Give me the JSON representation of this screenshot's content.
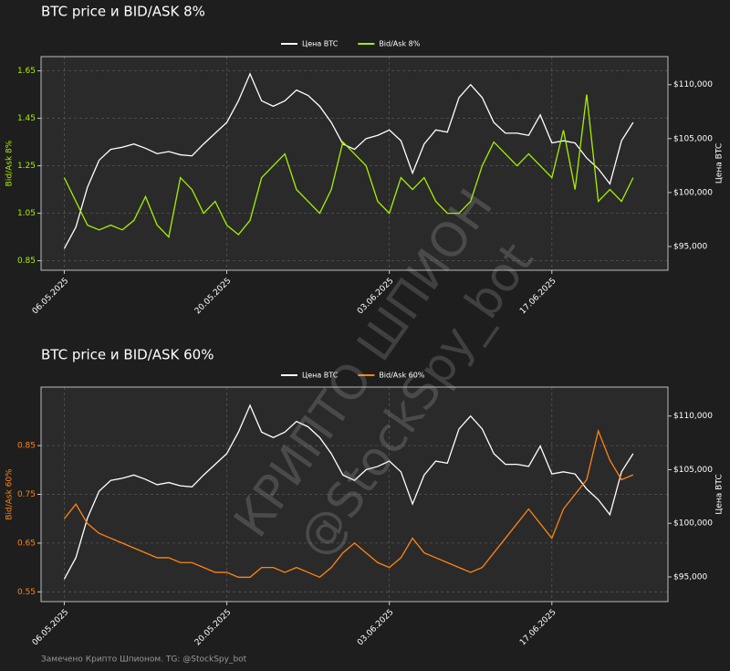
{
  "chart_data": [
    {
      "type": "line",
      "title": "BTC price и BID/ASK 8%",
      "ylabel": "Bid/Ask 8%",
      "y2label": "Цена BTC",
      "x": [
        "06.05.2025",
        "07.05.2025",
        "08.05.2025",
        "09.05.2025",
        "10.05.2025",
        "11.05.2025",
        "12.05.2025",
        "13.05.2025",
        "14.05.2025",
        "15.05.2025",
        "16.05.2025",
        "17.05.2025",
        "18.05.2025",
        "19.05.2025",
        "20.05.2025",
        "21.05.2025",
        "22.05.2025",
        "23.05.2025",
        "24.05.2025",
        "25.05.2025",
        "26.05.2025",
        "27.05.2025",
        "28.05.2025",
        "29.05.2025",
        "30.05.2025",
        "31.05.2025",
        "01.06.2025",
        "02.06.2025",
        "03.06.2025",
        "04.06.2025",
        "05.06.2025",
        "06.06.2025",
        "07.06.2025",
        "08.06.2025",
        "09.06.2025",
        "10.06.2025",
        "11.06.2025",
        "12.06.2025",
        "13.06.2025",
        "14.06.2025",
        "15.06.2025",
        "16.06.2025",
        "17.06.2025",
        "18.06.2025",
        "19.06.2025",
        "20.06.2025",
        "21.06.2025",
        "22.06.2025",
        "23.06.2025",
        "24.06.2025"
      ],
      "series": [
        {
          "name": "Цена BTC",
          "color": "#ffffff",
          "axis": "y2",
          "values": [
            94800,
            96800,
            100500,
            103000,
            104000,
            104200,
            104500,
            104100,
            103600,
            103800,
            103500,
            103400,
            104500,
            105500,
            106500,
            108500,
            111000,
            108500,
            108000,
            108500,
            109500,
            109000,
            108000,
            106500,
            104500,
            104000,
            105000,
            105300,
            105800,
            104800,
            101800,
            104500,
            105800,
            105600,
            108800,
            110000,
            108800,
            106500,
            105500,
            105500,
            105300,
            107200,
            104600,
            104800,
            104600,
            103200,
            102200,
            100800,
            104800,
            106500
          ]
        },
        {
          "name": "Bid/Ask 8%",
          "color": "#a6f000",
          "values": [
            1.2,
            1.1,
            1.0,
            0.98,
            1.0,
            0.98,
            1.02,
            1.12,
            1.0,
            0.95,
            1.2,
            1.15,
            1.05,
            1.1,
            1.0,
            0.96,
            1.02,
            1.2,
            1.25,
            1.3,
            1.15,
            1.1,
            1.05,
            1.15,
            1.35,
            1.3,
            1.25,
            1.1,
            1.05,
            1.2,
            1.15,
            1.2,
            1.1,
            1.05,
            1.05,
            1.1,
            1.25,
            1.35,
            1.3,
            1.25,
            1.3,
            1.25,
            1.2,
            1.4,
            1.15,
            1.55,
            1.1,
            1.15,
            1.1,
            1.2
          ]
        }
      ],
      "xlim": [
        "04.05.2025",
        "27.06.2025"
      ],
      "xticks": [
        "06.05.2025",
        "20.05.2025",
        "03.06.2025",
        "17.06.2025"
      ],
      "ylim": [
        0.81,
        1.71
      ],
      "yticks": [
        0.85,
        1.05,
        1.25,
        1.45,
        1.65
      ],
      "y2lim": [
        92800,
        112600
      ],
      "y2ticks": [
        {
          "value": 95000,
          "label": "$95,000"
        },
        {
          "value": 100000,
          "label": "$100,000"
        },
        {
          "value": 105000,
          "label": "$105,000"
        },
        {
          "value": 110000,
          "label": "$110,000"
        }
      ],
      "grid": true,
      "legend": "top"
    },
    {
      "type": "line",
      "title": "BTC price и BID/ASK 60%",
      "ylabel": "Bid/Ask 60%",
      "y2label": "Цена BTC",
      "x": [
        "06.05.2025",
        "07.05.2025",
        "08.05.2025",
        "09.05.2025",
        "10.05.2025",
        "11.05.2025",
        "12.05.2025",
        "13.05.2025",
        "14.05.2025",
        "15.05.2025",
        "16.05.2025",
        "17.05.2025",
        "18.05.2025",
        "19.05.2025",
        "20.05.2025",
        "21.05.2025",
        "22.05.2025",
        "23.05.2025",
        "24.05.2025",
        "25.05.2025",
        "26.05.2025",
        "27.05.2025",
        "28.05.2025",
        "29.05.2025",
        "30.05.2025",
        "31.05.2025",
        "01.06.2025",
        "02.06.2025",
        "03.06.2025",
        "04.06.2025",
        "05.06.2025",
        "06.06.2025",
        "07.06.2025",
        "08.06.2025",
        "09.06.2025",
        "10.06.2025",
        "11.06.2025",
        "12.06.2025",
        "13.06.2025",
        "14.06.2025",
        "15.06.2025",
        "16.06.2025",
        "17.06.2025",
        "18.06.2025",
        "19.06.2025",
        "20.06.2025",
        "21.06.2025",
        "22.06.2025",
        "23.06.2025",
        "24.06.2025"
      ],
      "series": [
        {
          "name": "Цена BTC",
          "color": "#ffffff",
          "axis": "y2",
          "values": [
            94800,
            96800,
            100500,
            103000,
            104000,
            104200,
            104500,
            104100,
            103600,
            103800,
            103500,
            103400,
            104500,
            105500,
            106500,
            108500,
            111000,
            108500,
            108000,
            108500,
            109500,
            109000,
            108000,
            106500,
            104500,
            104000,
            105000,
            105300,
            105800,
            104800,
            101800,
            104500,
            105800,
            105600,
            108800,
            110000,
            108800,
            106500,
            105500,
            105500,
            105300,
            107200,
            104600,
            104800,
            104600,
            103200,
            102200,
            100800,
            104800,
            106500
          ]
        },
        {
          "name": "Bid/Ask 60%",
          "color": "#ff8412",
          "values": [
            0.7,
            0.73,
            0.69,
            0.67,
            0.66,
            0.65,
            0.64,
            0.63,
            0.62,
            0.62,
            0.61,
            0.61,
            0.6,
            0.59,
            0.59,
            0.58,
            0.58,
            0.6,
            0.6,
            0.59,
            0.6,
            0.59,
            0.58,
            0.6,
            0.63,
            0.65,
            0.63,
            0.61,
            0.6,
            0.62,
            0.66,
            0.63,
            0.62,
            0.61,
            0.6,
            0.59,
            0.6,
            0.63,
            0.66,
            0.69,
            0.72,
            0.69,
            0.66,
            0.72,
            0.75,
            0.78,
            0.88,
            0.82,
            0.78,
            0.79
          ]
        }
      ],
      "xlim": [
        "04.05.2025",
        "27.06.2025"
      ],
      "xticks": [
        "06.05.2025",
        "20.05.2025",
        "03.06.2025",
        "17.06.2025"
      ],
      "ylim": [
        0.53,
        0.97
      ],
      "yticks": [
        0.55,
        0.65,
        0.75,
        0.85
      ],
      "y2lim": [
        92700,
        112700
      ],
      "y2ticks": [
        {
          "value": 95000,
          "label": "$95,000"
        },
        {
          "value": 100000,
          "label": "$100,000"
        },
        {
          "value": 105000,
          "label": "$105,000"
        },
        {
          "value": 110000,
          "label": "$110,000"
        }
      ],
      "grid": true,
      "legend": "top"
    }
  ],
  "watermark": [
    "КРИПТО ШПИОН",
    "@StockSpy_bot"
  ],
  "footer": "Замечено Крипто Шпионом. TG: @StockSpy_bot"
}
